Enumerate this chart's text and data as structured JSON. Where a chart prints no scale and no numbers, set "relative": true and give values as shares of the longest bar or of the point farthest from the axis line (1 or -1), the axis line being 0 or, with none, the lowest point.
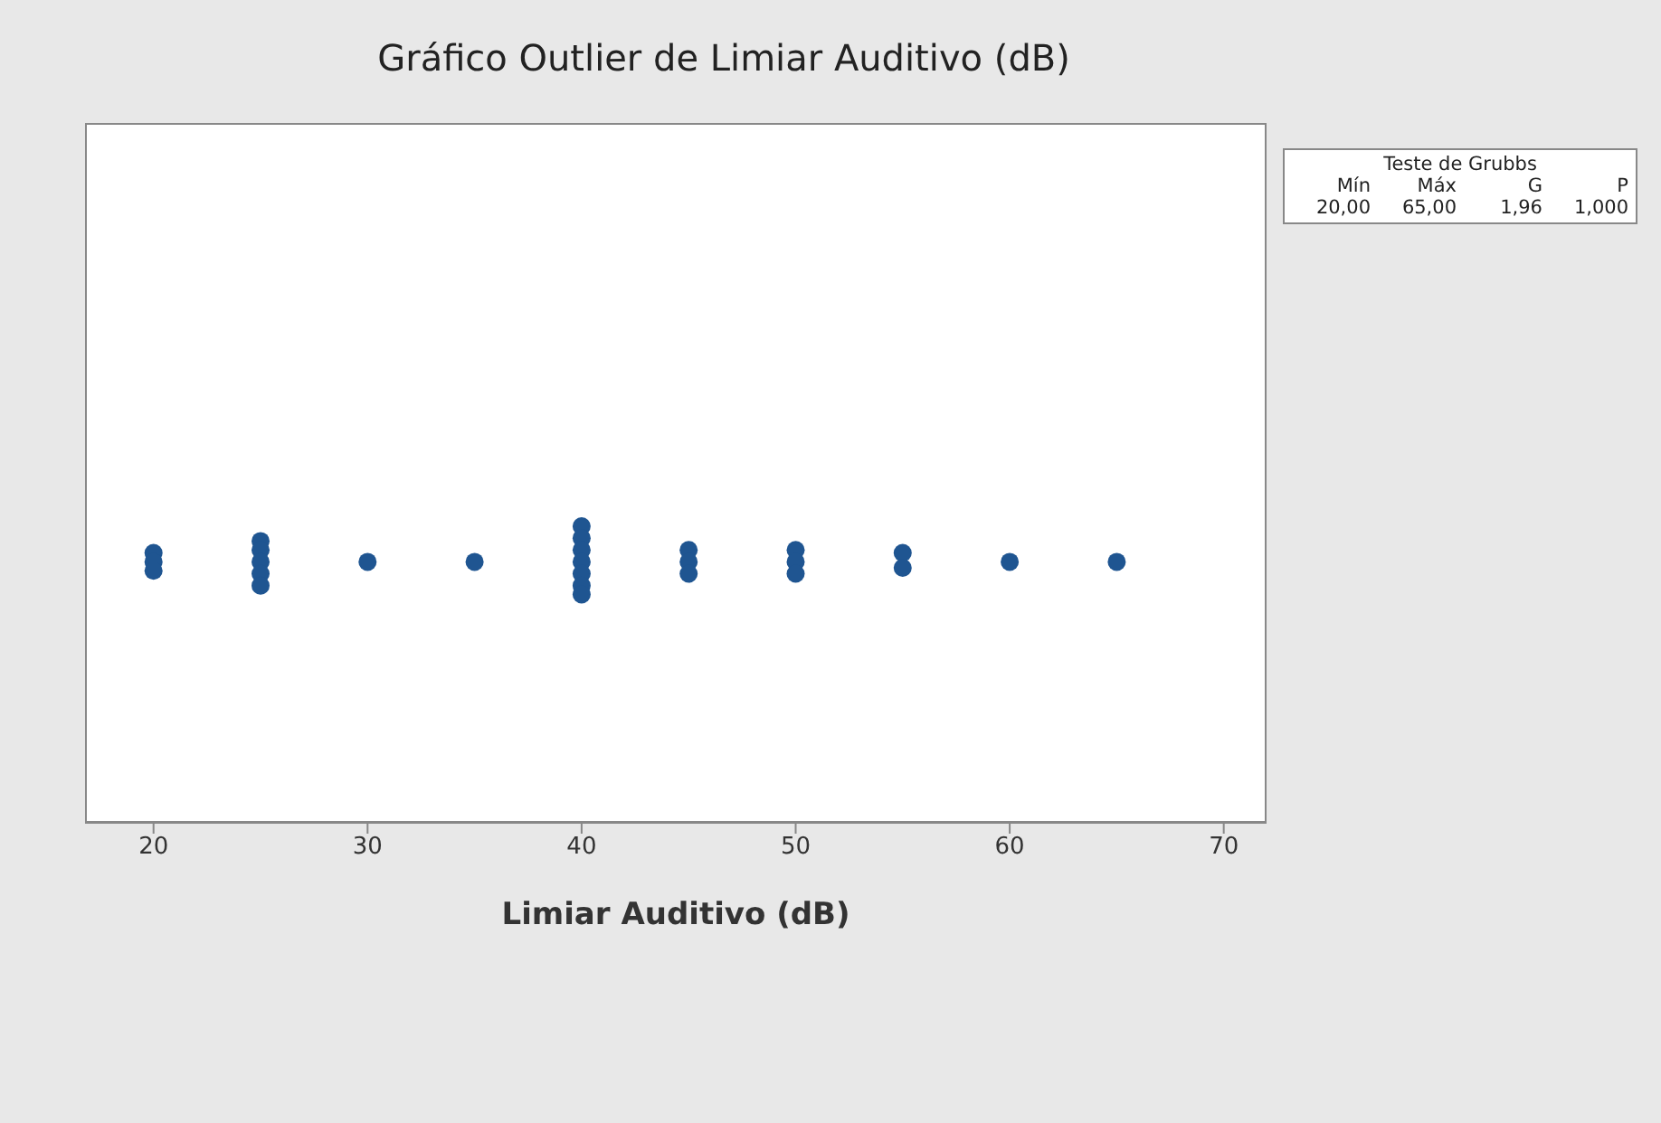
{
  "chart_data": {
    "type": "scatter",
    "title": "Gráfico Outlier de Limiar Auditivo (dB)",
    "xlabel": "Limiar Auditivo (dB)",
    "xlim": [
      16.8,
      72
    ],
    "xticks": [
      20,
      30,
      40,
      50,
      60,
      70
    ],
    "relative": true,
    "grid": false,
    "legend": false,
    "marker": "circle",
    "annotations": [
      "Teste de Grubbs",
      "Mín",
      "Máx",
      "G",
      "P",
      "20,00",
      "65,00",
      "1,96",
      "1,000"
    ],
    "series": [
      {
        "color": "#1f5591",
        "x": [
          20,
          20,
          20,
          25,
          25,
          25,
          25,
          25,
          30,
          35,
          40,
          40,
          40,
          40,
          40,
          40,
          40,
          45,
          45,
          45,
          50,
          50,
          50,
          55,
          55,
          60,
          65
        ],
        "values": [
          0.91,
          0.88,
          0.85,
          0.95,
          0.92,
          0.88,
          0.84,
          0.8,
          0.88,
          0.88,
          1,
          0.96,
          0.92,
          0.88,
          0.84,
          0.8,
          0.77,
          0.92,
          0.88,
          0.84,
          0.92,
          0.88,
          0.84,
          0.91,
          0.86,
          0.88,
          0.88
        ]
      }
    ]
  }
}
